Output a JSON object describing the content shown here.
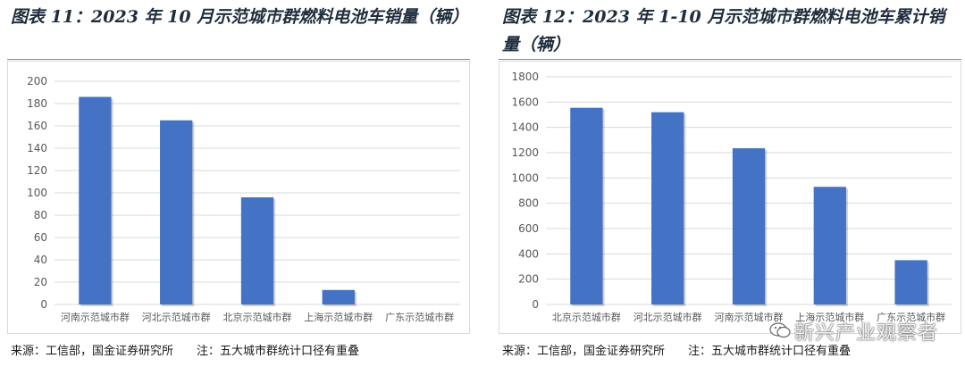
{
  "charts": [
    {
      "title": "图表 11：2023 年 10 月示范城市群燃料电池车销量（辆）",
      "source": "来源：工信部，国金证券研究所",
      "note": "注：五大城市群统计口径有重叠"
    },
    {
      "title": "图表 12：2023 年 1-10 月示范城市群燃料电池车累计销量（辆）",
      "source": "来源：工信部，国金证券研究所",
      "note": "注：五大城市群统计口径有重叠"
    }
  ],
  "watermark": "新兴产业观察者",
  "colors": {
    "bar": "#4472C4",
    "grid": "#d9d9d9",
    "axis_text": "#595959"
  },
  "chart_data": [
    {
      "type": "bar",
      "title": "图表 11：2023 年 10 月示范城市群燃料电池车销量（辆）",
      "categories": [
        "河南示范城市群",
        "河北示范城市群",
        "北京示范城市群",
        "上海示范城市群",
        "广东示范城市群"
      ],
      "values": [
        186,
        165,
        96,
        13,
        0
      ],
      "ylim": [
        0,
        200
      ],
      "yticks": [
        0,
        20,
        40,
        60,
        80,
        100,
        120,
        140,
        160,
        180,
        200
      ],
      "grid": true
    },
    {
      "type": "bar",
      "title": "图表 12：2023 年 1-10 月示范城市群燃料电池车累计销量（辆）",
      "categories": [
        "北京示范城市群",
        "河北示范城市群",
        "河南示范城市群",
        "上海示范城市群",
        "广东示范城市群"
      ],
      "values": [
        1555,
        1520,
        1235,
        930,
        350
      ],
      "ylim": [
        0,
        1800
      ],
      "yticks": [
        0,
        200,
        400,
        600,
        800,
        1000,
        1200,
        1400,
        1600,
        1800
      ],
      "grid": true
    }
  ]
}
